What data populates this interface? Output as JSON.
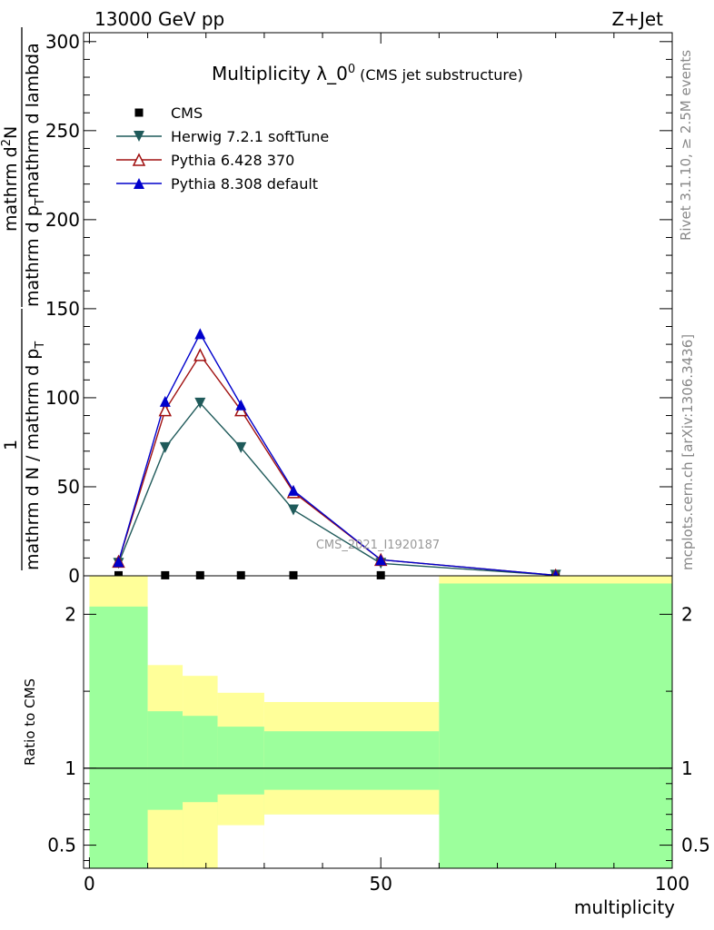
{
  "header": {
    "energy_label": "13000 GeV pp",
    "process_label": "Z+Jet"
  },
  "side_text": {
    "rivet": "Rivet 3.1.10, ≥ 2.5M events",
    "mcplots": "mcplots.cern.ch [arXiv:1306.3436]"
  },
  "chart_data": [
    {
      "type": "line",
      "title": "Multiplicity λ_0",
      "title_superscript": "0",
      "subtitle": "(CMS jet substructure)",
      "watermark": "CMS_2021_I1920187",
      "ylabel": {
        "numerator": "1",
        "denominator": "mathrm d N / mathrm d p",
        "denominator_sub": "T",
        "numerator2": "mathrm d",
        "numerator2_sup": "2",
        "numerator2_tail": "N",
        "denominator2": "mathrm d p",
        "denominator2_sub": "T",
        "denominator2_tail": "mathrm d lambda"
      },
      "xlim": [
        -1,
        100
      ],
      "ylim": [
        0,
        305
      ],
      "yticks": [
        0,
        50,
        100,
        150,
        200,
        250,
        300
      ],
      "series": [
        {
          "name": "CMS",
          "color": "#000000",
          "marker": "square",
          "x": [
            5,
            13,
            19,
            26,
            35,
            50,
            80
          ],
          "values": [
            0.3,
            0.3,
            0.3,
            0.3,
            0.3,
            0.3,
            0.3
          ]
        },
        {
          "name": "Herwig 7.2.1 softTune",
          "color": "#1f5a5a",
          "marker": "triangle-down",
          "x": [
            5,
            13,
            19,
            26,
            35,
            50,
            80
          ],
          "values": [
            7,
            72,
            97,
            72,
            37,
            7,
            0.3
          ]
        },
        {
          "name": "Pythia 6.428 370",
          "color": "#a01010",
          "marker": "triangle-up-open",
          "x": [
            5,
            13,
            19,
            26,
            35,
            50,
            80
          ],
          "values": [
            8,
            93,
            124,
            93,
            47,
            9,
            0.3
          ]
        },
        {
          "name": "Pythia 8.308 default",
          "color": "#0000cc",
          "marker": "triangle-up",
          "x": [
            5,
            13,
            19,
            26,
            35,
            50,
            80
          ],
          "values": [
            8,
            98,
            136,
            96,
            48,
            9,
            0.3
          ]
        }
      ]
    },
    {
      "type": "area",
      "ylabel": "Ratio to CMS",
      "xlabel": "multiplicity",
      "xlim": [
        -1,
        100
      ],
      "ylim": [
        0.35,
        2.25
      ],
      "yticks": [
        0.5,
        1,
        2
      ],
      "xticks": [
        0,
        50,
        100
      ],
      "reference_line": 1,
      "bins": [
        {
          "range": [
            0,
            10
          ],
          "green": [
            0.35,
            2.05
          ],
          "yellow": [
            0.35,
            2.25
          ]
        },
        {
          "range": [
            10,
            16
          ],
          "green": [
            0.35,
            1.37
          ],
          "yellow": [
            0.35,
            1.67
          ]
        },
        {
          "range": [
            16,
            22
          ],
          "green": [
            0.35,
            1.34
          ],
          "yellow": [
            0.35,
            1.6
          ]
        },
        {
          "range": [
            22,
            30
          ],
          "green": [
            0.63,
            1.27
          ],
          "yellow": [
            0.35,
            1.49
          ]
        },
        {
          "range": [
            30,
            60
          ],
          "green": [
            0.7,
            1.24
          ],
          "yellow": [
            0.35,
            1.43
          ]
        },
        {
          "range": [
            60,
            100
          ],
          "green": [
            0.35,
            2.2
          ],
          "yellow": [
            0.35,
            2.25
          ]
        }
      ],
      "bins_inner_low_yellow": [
        {
          "range": [
            10,
            16
          ],
          "low": 0.35
        },
        {
          "range": [
            16,
            22
          ],
          "low": 0.35
        },
        {
          "range": [
            22,
            30
          ],
          "low": 0.63
        },
        {
          "range": [
            30,
            60
          ],
          "low": 0.7
        }
      ],
      "bins_green_low": [
        {
          "range": [
            10,
            16
          ],
          "low": 0.73
        },
        {
          "range": [
            16,
            22
          ],
          "low": 0.78
        },
        {
          "range": [
            22,
            30
          ],
          "low": 0.83
        },
        {
          "range": [
            30,
            60
          ],
          "low": 0.86
        }
      ],
      "colors": {
        "green": "#9cff9c",
        "yellow": "#ffff99"
      }
    }
  ]
}
